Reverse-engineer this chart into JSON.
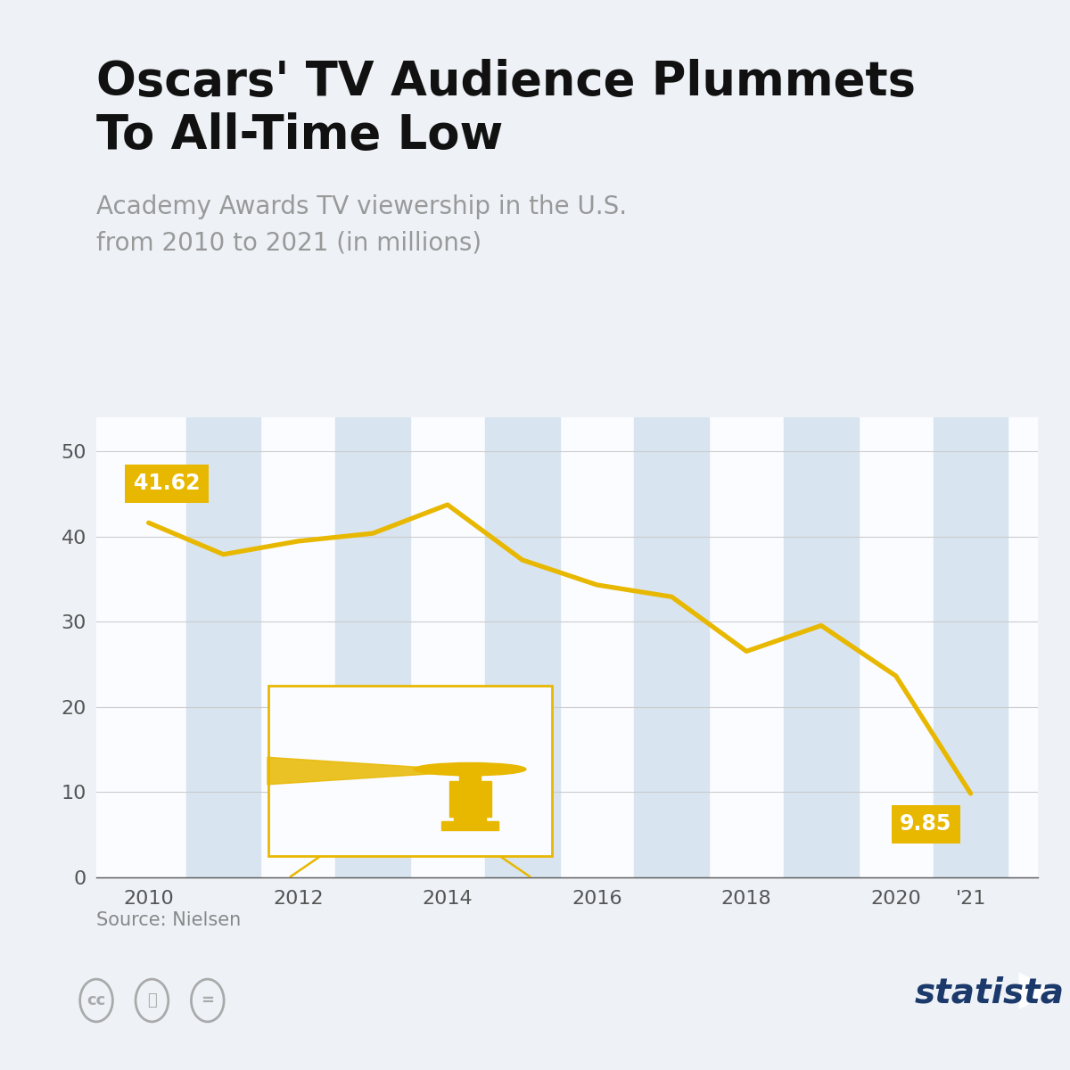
{
  "years": [
    2010,
    2011,
    2012,
    2013,
    2014,
    2015,
    2016,
    2017,
    2018,
    2019,
    2020,
    2021
  ],
  "values": [
    41.62,
    37.91,
    39.46,
    40.38,
    43.74,
    37.26,
    34.33,
    32.93,
    26.54,
    29.56,
    23.64,
    9.85
  ],
  "line_color": "#E8B800",
  "line_width": 3.8,
  "bg_color": "#EEF2F7",
  "chart_bg": "#FAFCFF",
  "title_line1": "Oscars' TV Audience Plummets",
  "title_line2": "To All-Time Low",
  "subtitle_line1": "Academy Awards TV viewership in the U.S.",
  "subtitle_line2": "from 2010 to 2021 (in millions)",
  "title_color": "#111111",
  "subtitle_color": "#999999",
  "accent_color": "#D4A017",
  "accent_color2": "#E8B800",
  "source_text": "Source: Nielsen",
  "yticks": [
    0,
    10,
    20,
    30,
    40,
    50
  ],
  "xtick_labels": [
    "2010",
    "",
    "2012",
    "",
    "2014",
    "",
    "2016",
    "",
    "2018",
    "",
    "2020",
    "'21"
  ],
  "ylim": [
    0,
    54
  ],
  "xlim": [
    2009.3,
    2021.9
  ],
  "stripe_color": "#D8E4EF",
  "label_start": "41.62",
  "label_end": "9.85",
  "grid_color": "#CCCCCC",
  "statista_color": "#1B3A6B"
}
